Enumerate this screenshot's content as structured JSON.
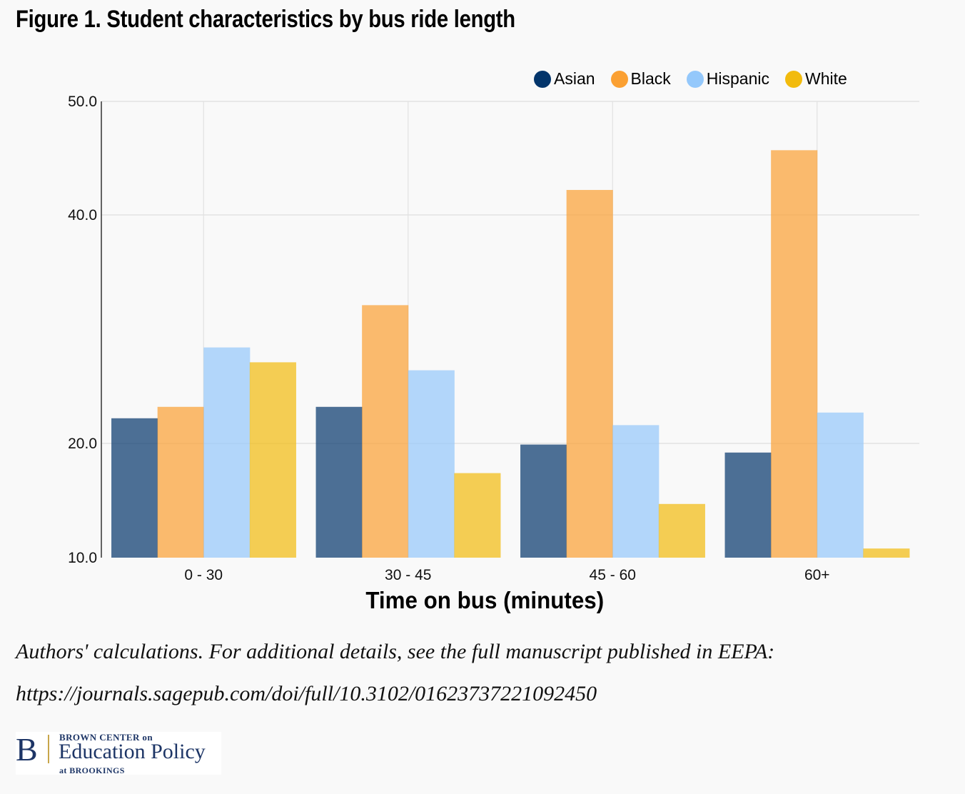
{
  "title": "Figure 1. Student characteristics by bus ride length",
  "legend": [
    {
      "name": "Asian",
      "color": "#03356b"
    },
    {
      "name": "Black",
      "color": "#fba032"
    },
    {
      "name": "Hispanic",
      "color": "#94c8fb"
    },
    {
      "name": "White",
      "color": "#f2bb0d"
    }
  ],
  "chart_data": {
    "type": "bar",
    "title": "Figure 1. Student characteristics by bus ride length",
    "xlabel": "Time on bus (minutes)",
    "ylabel": "",
    "categories": [
      "0 - 30",
      "30 - 45",
      "45 - 60",
      "60+"
    ],
    "series": [
      {
        "name": "Asian",
        "color": "#03356b",
        "values": [
          22.2,
          23.2,
          19.9,
          19.2
        ]
      },
      {
        "name": "Black",
        "color": "#fba032",
        "values": [
          23.2,
          32.1,
          42.2,
          45.7
        ]
      },
      {
        "name": "Hispanic",
        "color": "#94c8fb",
        "values": [
          28.4,
          26.4,
          21.6,
          22.7
        ]
      },
      {
        "name": "White",
        "color": "#f2bb0d",
        "values": [
          27.1,
          17.4,
          14.7,
          10.8
        ]
      }
    ],
    "yticks": [
      10.0,
      20.0,
      40.0,
      50.0
    ],
    "ytick_labels": [
      "10.0",
      "20.0",
      "40.0",
      "50.0"
    ],
    "ylim": [
      10,
      50
    ],
    "bar_opacity": 0.7,
    "grid": true,
    "legend_position": "top-right"
  },
  "note": {
    "line1": "Authors' calculations. For additional details, see the full manuscript published in EEPA:",
    "line2": "https://journals.sagepub.com/doi/full/10.3102/01623737221092450"
  },
  "logo": {
    "letter": "B",
    "top": "BROWN CENTER on",
    "middle": "Education Policy",
    "bottom": "at BROOKINGS"
  }
}
